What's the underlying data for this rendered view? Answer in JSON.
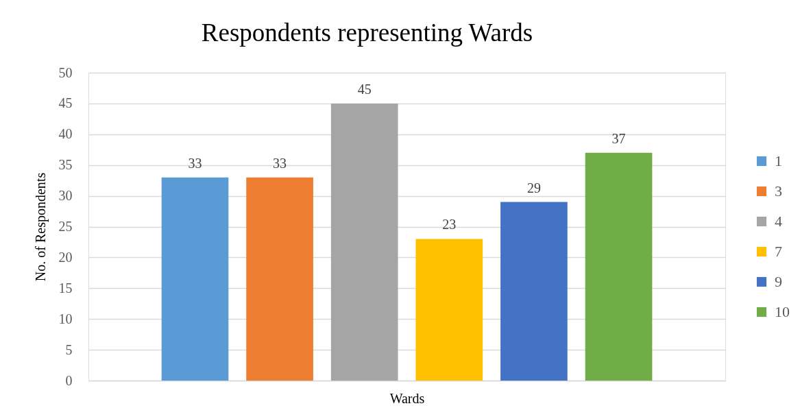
{
  "chart_data": {
    "type": "bar",
    "title": "Respondents representing Wards",
    "xlabel": "Wards",
    "ylabel": "No. of Respondents",
    "categories": [
      null
    ],
    "series": [
      {
        "name": "1",
        "color": "#5b9bd5",
        "values": [
          33
        ]
      },
      {
        "name": "3",
        "color": "#ed7d31",
        "values": [
          33
        ]
      },
      {
        "name": "4",
        "color": "#a5a5a5",
        "values": [
          45
        ]
      },
      {
        "name": "7",
        "color": "#ffc000",
        "values": [
          23
        ]
      },
      {
        "name": "9",
        "color": "#4472c4",
        "values": [
          29
        ]
      },
      {
        "name": "10",
        "color": "#70ad47",
        "values": [
          37
        ]
      }
    ],
    "ylim": [
      0,
      50
    ],
    "yticks": [
      0,
      5,
      10,
      15,
      20,
      25,
      30,
      35,
      40,
      45,
      50
    ],
    "grid": "y",
    "legend": "right",
    "data_labels": true
  }
}
